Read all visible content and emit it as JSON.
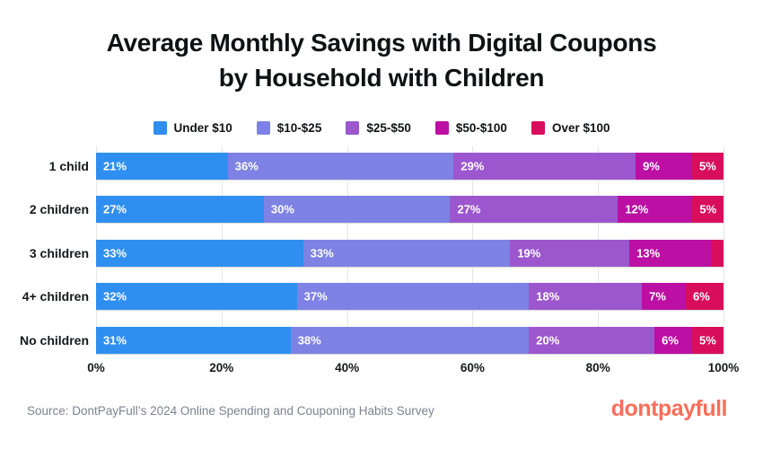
{
  "title": {
    "line1": "Average Monthly Savings with Digital Coupons",
    "line2": "by Household with Children"
  },
  "chart_data": {
    "type": "bar",
    "stacked": true,
    "orientation": "horizontal",
    "title": "Average Monthly Savings with Digital Coupons by Household with Children",
    "categories": [
      "1 child",
      "2 children",
      "3 children",
      "4+ children",
      "No children"
    ],
    "series": [
      {
        "name": "Under $10",
        "color": "#2f8ff0",
        "values": [
          21,
          27,
          33,
          32,
          31
        ]
      },
      {
        "name": "$10-$25",
        "color": "#7e82e4",
        "values": [
          36,
          30,
          33,
          37,
          38
        ]
      },
      {
        "name": "$25-$50",
        "color": "#9c57ce",
        "values": [
          29,
          27,
          19,
          18,
          20
        ]
      },
      {
        "name": "$50-$100",
        "color": "#bb10a3",
        "values": [
          9,
          12,
          13,
          7,
          6
        ]
      },
      {
        "name": "Over $100",
        "color": "#d80e5d",
        "values": [
          5,
          5,
          2,
          6,
          5
        ]
      }
    ],
    "value_suffix": "%",
    "xlabel": "",
    "ylabel": "",
    "xlim": [
      0,
      100
    ],
    "xticks": [
      "0%",
      "20%",
      "40%",
      "60%",
      "80%",
      "100%"
    ],
    "grid": "vertical",
    "legend_position": "top",
    "unlabeled_segments": [
      {
        "category": "3 children",
        "series": "Over $100",
        "value": 2
      }
    ]
  },
  "footer": {
    "source": "Source: DontPayFull’s 2024 Online Spending and Couponing Habits Survey",
    "logo": "dontpayfull",
    "logo_color": "#f96e5b"
  }
}
